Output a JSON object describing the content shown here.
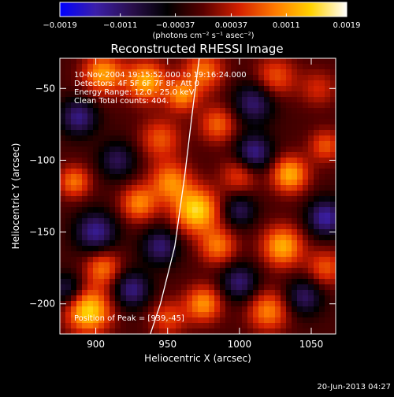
{
  "chart_data": {
    "type": "heatmap",
    "title": "Reconstructed RHESSI Image",
    "xlabel": "Heliocentric X (arcsec)",
    "ylabel": "Heliocentric Y (arcsec)",
    "xlim": [
      875,
      1067
    ],
    "ylim": [
      -221,
      -29
    ],
    "x_ticks": [
      900,
      950,
      1000,
      1050
    ],
    "x_tick_labels": [
      "900",
      "950",
      "1000",
      "1050"
    ],
    "y_ticks": [
      -200,
      -150,
      -100,
      -50
    ],
    "y_tick_labels": [
      "−200",
      "−150",
      "−100",
      "−50"
    ],
    "colorbar": {
      "range": [
        -0.0019,
        0.0019
      ],
      "ticks": [
        -0.0019,
        -0.0011,
        -0.00037,
        0.00037,
        0.0011,
        0.0019
      ],
      "tick_labels": [
        "−0.0019",
        "−0.0011",
        "−0.00037",
        "0.00037",
        "0.0011",
        "0.0019"
      ],
      "unit_label": "(photons cm⁻² s⁻¹ asec⁻²)",
      "colormap": [
        "#0000ff",
        "#3b1fa8",
        "#2a0f4d",
        "#000000",
        "#5a0000",
        "#d42000",
        "#ff7a00",
        "#ffd200",
        "#ffffff"
      ]
    },
    "annotations": {
      "time_range": "10-Nov-2004 19:15:52.000 to 19:16:24.000",
      "detectors": "Detectors: 4F 5F 6F 7F 8F, Att 0",
      "energy_range": "Energy Range: 12.0 - 25.0 keV",
      "clean_counts": "Clean     Total counts: 404.",
      "peak_position": "Position of Peak = [939,-45]"
    },
    "limb_curve": {
      "color": "#ffffff",
      "points": [
        [
          972,
          -29
        ],
        [
          968,
          -60
        ],
        [
          962,
          -110
        ],
        [
          955,
          -160
        ],
        [
          945,
          -200
        ],
        [
          938,
          -221
        ]
      ]
    },
    "blobs": [
      [
        905,
        -40,
        0.0015,
        10
      ],
      [
        935,
        -45,
        0.0016,
        10
      ],
      [
        975,
        -38,
        0.0012,
        10
      ],
      [
        1025,
        -42,
        0.001,
        10
      ],
      [
        1055,
        -50,
        0.0007,
        9
      ],
      [
        888,
        -70,
        -0.0013,
        9
      ],
      [
        1010,
        -60,
        -0.0012,
        10
      ],
      [
        945,
        -85,
        0.001,
        10
      ],
      [
        985,
        -75,
        0.0011,
        9
      ],
      [
        1060,
        -90,
        0.001,
        8
      ],
      [
        885,
        -115,
        0.0012,
        8
      ],
      [
        915,
        -100,
        -0.001,
        9
      ],
      [
        952,
        -115,
        0.0013,
        10
      ],
      [
        1000,
        -110,
        0.0009,
        9
      ],
      [
        1035,
        -110,
        0.0016,
        9
      ],
      [
        1010,
        -95,
        -0.0014,
        9
      ],
      [
        930,
        -130,
        0.0013,
        9
      ],
      [
        970,
        -135,
        0.0019,
        11
      ],
      [
        900,
        -150,
        -0.0014,
        10
      ],
      [
        945,
        -160,
        -0.0012,
        9
      ],
      [
        985,
        -160,
        0.0012,
        9
      ],
      [
        1030,
        -160,
        0.0016,
        10
      ],
      [
        1060,
        -140,
        -0.0015,
        9
      ],
      [
        1060,
        -175,
        0.001,
        9
      ],
      [
        905,
        -175,
        0.0012,
        9
      ],
      [
        925,
        -190,
        -0.0013,
        9
      ],
      [
        975,
        -200,
        0.0014,
        9
      ],
      [
        1000,
        -185,
        -0.0012,
        9
      ],
      [
        1020,
        -205,
        0.0013,
        10
      ],
      [
        1045,
        -195,
        -0.0011,
        9
      ],
      [
        895,
        -205,
        0.0019,
        11
      ],
      [
        950,
        -210,
        0.0009,
        9
      ],
      [
        880,
        -190,
        -0.001,
        8
      ],
      [
        960,
        -55,
        0.0013,
        8
      ],
      [
        1000,
        -135,
        -0.001,
        8
      ]
    ]
  },
  "footer": {
    "timestamp": "20-Jun-2013 04:27"
  }
}
